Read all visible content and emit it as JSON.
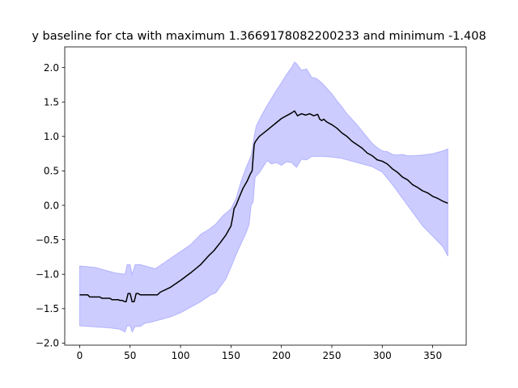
{
  "chart_data": {
    "type": "line",
    "title": "y baseline for cta with maximum 1.3669178082200233 and minimum -1.408",
    "xlabel": "",
    "ylabel": "",
    "xlim": [
      -14.8,
      383.2
    ],
    "ylim": [
      -2.03,
      2.3
    ],
    "x_ticks": [
      0,
      50,
      100,
      150,
      200,
      250,
      300,
      350
    ],
    "x_tick_labels": [
      "0",
      "50",
      "100",
      "150",
      "200",
      "250",
      "300",
      "350"
    ],
    "y_ticks": [
      -2.0,
      -1.5,
      -1.0,
      -0.5,
      0.0,
      0.5,
      1.0,
      1.5,
      2.0
    ],
    "y_tick_labels": [
      "−2.0",
      "−1.5",
      "−1.0",
      "−0.5",
      "0.0",
      "0.5",
      "1.0",
      "1.5",
      "2.0"
    ],
    "grid": false,
    "colors": {
      "line": "#000000",
      "band": "#0000ff",
      "axes": "#000000"
    },
    "band_opacity": 0.2,
    "mean": {
      "x": [
        0,
        8,
        10,
        20,
        22,
        30,
        32,
        38,
        40,
        42,
        45,
        46,
        48,
        50,
        52,
        54,
        56,
        58,
        60,
        62,
        70,
        77,
        80,
        90,
        100,
        110,
        115,
        120,
        128,
        133,
        140,
        145,
        150,
        152,
        153,
        155,
        158,
        162,
        166,
        169,
        171,
        172,
        173,
        174,
        178,
        185,
        190,
        195,
        200,
        205,
        210,
        213,
        216,
        220,
        224,
        228,
        232,
        236,
        238,
        240,
        242,
        245,
        250,
        255,
        260,
        265,
        270,
        275,
        280,
        285,
        290,
        295,
        300,
        305,
        310,
        315,
        320,
        325,
        330,
        335,
        340,
        345,
        350,
        355,
        360,
        365
      ],
      "y": [
        -1.3,
        -1.3,
        -1.33,
        -1.33,
        -1.35,
        -1.35,
        -1.37,
        -1.37,
        -1.38,
        -1.38,
        -1.4,
        -1.4,
        -1.28,
        -1.28,
        -1.4,
        -1.4,
        -1.28,
        -1.28,
        -1.3,
        -1.3,
        -1.3,
        -1.3,
        -1.26,
        -1.19,
        -1.09,
        -0.98,
        -0.92,
        -0.86,
        -0.73,
        -0.66,
        -0.53,
        -0.43,
        -0.3,
        -0.15,
        -0.05,
        0.0,
        0.11,
        0.25,
        0.35,
        0.45,
        0.5,
        0.7,
        0.88,
        0.92,
        1.0,
        1.08,
        1.14,
        1.2,
        1.26,
        1.3,
        1.34,
        1.37,
        1.3,
        1.33,
        1.31,
        1.33,
        1.3,
        1.32,
        1.25,
        1.23,
        1.25,
        1.21,
        1.17,
        1.12,
        1.05,
        1.0,
        0.93,
        0.88,
        0.83,
        0.76,
        0.72,
        0.66,
        0.64,
        0.6,
        0.53,
        0.48,
        0.41,
        0.37,
        0.3,
        0.26,
        0.21,
        0.18,
        0.13,
        0.1,
        0.06,
        0.03
      ]
    },
    "upper": {
      "x": [
        0,
        15,
        20,
        35,
        45,
        47,
        50,
        52,
        55,
        60,
        70,
        75,
        80,
        90,
        100,
        110,
        120,
        128,
        135,
        142,
        150,
        155,
        160,
        165,
        170,
        173,
        175,
        180,
        185,
        190,
        195,
        200,
        205,
        210,
        213,
        215,
        220,
        225,
        230,
        235,
        240,
        245,
        250,
        255,
        260,
        265,
        270,
        275,
        280,
        285,
        290,
        295,
        300,
        305,
        310,
        315,
        320,
        325,
        330,
        340,
        350,
        360,
        365
      ],
      "y": [
        -0.88,
        -0.9,
        -0.92,
        -0.98,
        -1.0,
        -0.86,
        -0.86,
        -1.0,
        -0.86,
        -0.86,
        -0.9,
        -0.92,
        -0.87,
        -0.77,
        -0.67,
        -0.57,
        -0.42,
        -0.35,
        -0.27,
        -0.15,
        -0.05,
        0.1,
        0.35,
        0.55,
        0.72,
        1.0,
        1.15,
        1.3,
        1.43,
        1.55,
        1.67,
        1.78,
        1.9,
        2.0,
        2.08,
        2.06,
        1.96,
        1.98,
        1.86,
        1.84,
        1.78,
        1.7,
        1.62,
        1.52,
        1.43,
        1.33,
        1.25,
        1.17,
        1.08,
        0.99,
        0.9,
        0.84,
        0.79,
        0.78,
        0.74,
        0.73,
        0.74,
        0.72,
        0.72,
        0.73,
        0.75,
        0.79,
        0.82
      ]
    },
    "lower": {
      "x": [
        0,
        10,
        20,
        30,
        35,
        40,
        45,
        47,
        50,
        52,
        55,
        60,
        65,
        70,
        80,
        90,
        100,
        110,
        120,
        130,
        135,
        140,
        145,
        150,
        155,
        160,
        165,
        168,
        170,
        172,
        174,
        178,
        182,
        186,
        190,
        195,
        200,
        205,
        210,
        215,
        220,
        225,
        230,
        240,
        250,
        260,
        270,
        280,
        290,
        300,
        310,
        320,
        330,
        340,
        350,
        360,
        365
      ],
      "y": [
        -1.75,
        -1.76,
        -1.77,
        -1.78,
        -1.79,
        -1.8,
        -1.84,
        -1.75,
        -1.75,
        -1.84,
        -1.76,
        -1.76,
        -1.71,
        -1.7,
        -1.66,
        -1.62,
        -1.56,
        -1.48,
        -1.4,
        -1.3,
        -1.27,
        -1.17,
        -1.07,
        -0.9,
        -0.72,
        -0.56,
        -0.4,
        -0.28,
        0.0,
        0.05,
        0.41,
        0.47,
        0.56,
        0.65,
        0.6,
        0.62,
        0.58,
        0.63,
        0.62,
        0.55,
        0.67,
        0.66,
        0.71,
        0.71,
        0.7,
        0.68,
        0.64,
        0.6,
        0.56,
        0.48,
        0.3,
        0.1,
        -0.1,
        -0.3,
        -0.45,
        -0.6,
        -0.74
      ]
    }
  }
}
